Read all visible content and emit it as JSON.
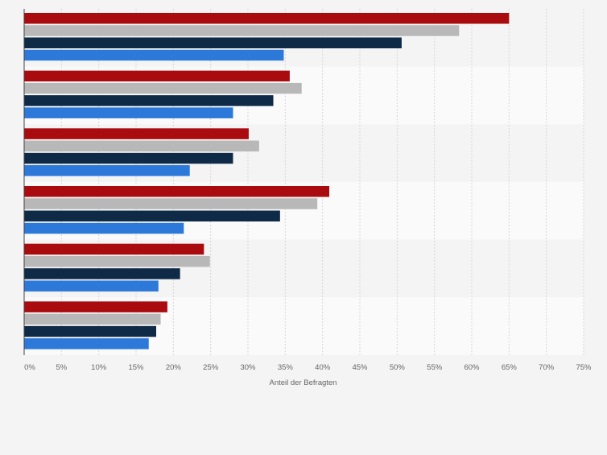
{
  "chart_data": {
    "type": "bar",
    "orientation": "horizontal",
    "xlabel": "Anteil der Befragten",
    "xlim": [
      0,
      75
    ],
    "xticks": [
      0,
      5,
      10,
      15,
      20,
      25,
      30,
      35,
      40,
      45,
      50,
      55,
      60,
      65,
      70,
      75
    ],
    "tick_suffix": "%",
    "category_count": 6,
    "grid": true,
    "legend": "none",
    "series": [
      {
        "color": "#a90b0f",
        "values": [
          65.0,
          35.6,
          30.1,
          40.9,
          24.1,
          19.2
        ]
      },
      {
        "color": "#b8b8b8",
        "values": [
          58.3,
          37.2,
          31.5,
          39.3,
          24.9,
          18.3
        ]
      },
      {
        "color": "#0f2a47",
        "values": [
          50.6,
          33.4,
          28.0,
          34.3,
          20.9,
          17.7
        ]
      },
      {
        "color": "#2d79d9",
        "values": [
          34.8,
          28.0,
          22.2,
          21.4,
          18.0,
          16.7
        ]
      }
    ]
  }
}
